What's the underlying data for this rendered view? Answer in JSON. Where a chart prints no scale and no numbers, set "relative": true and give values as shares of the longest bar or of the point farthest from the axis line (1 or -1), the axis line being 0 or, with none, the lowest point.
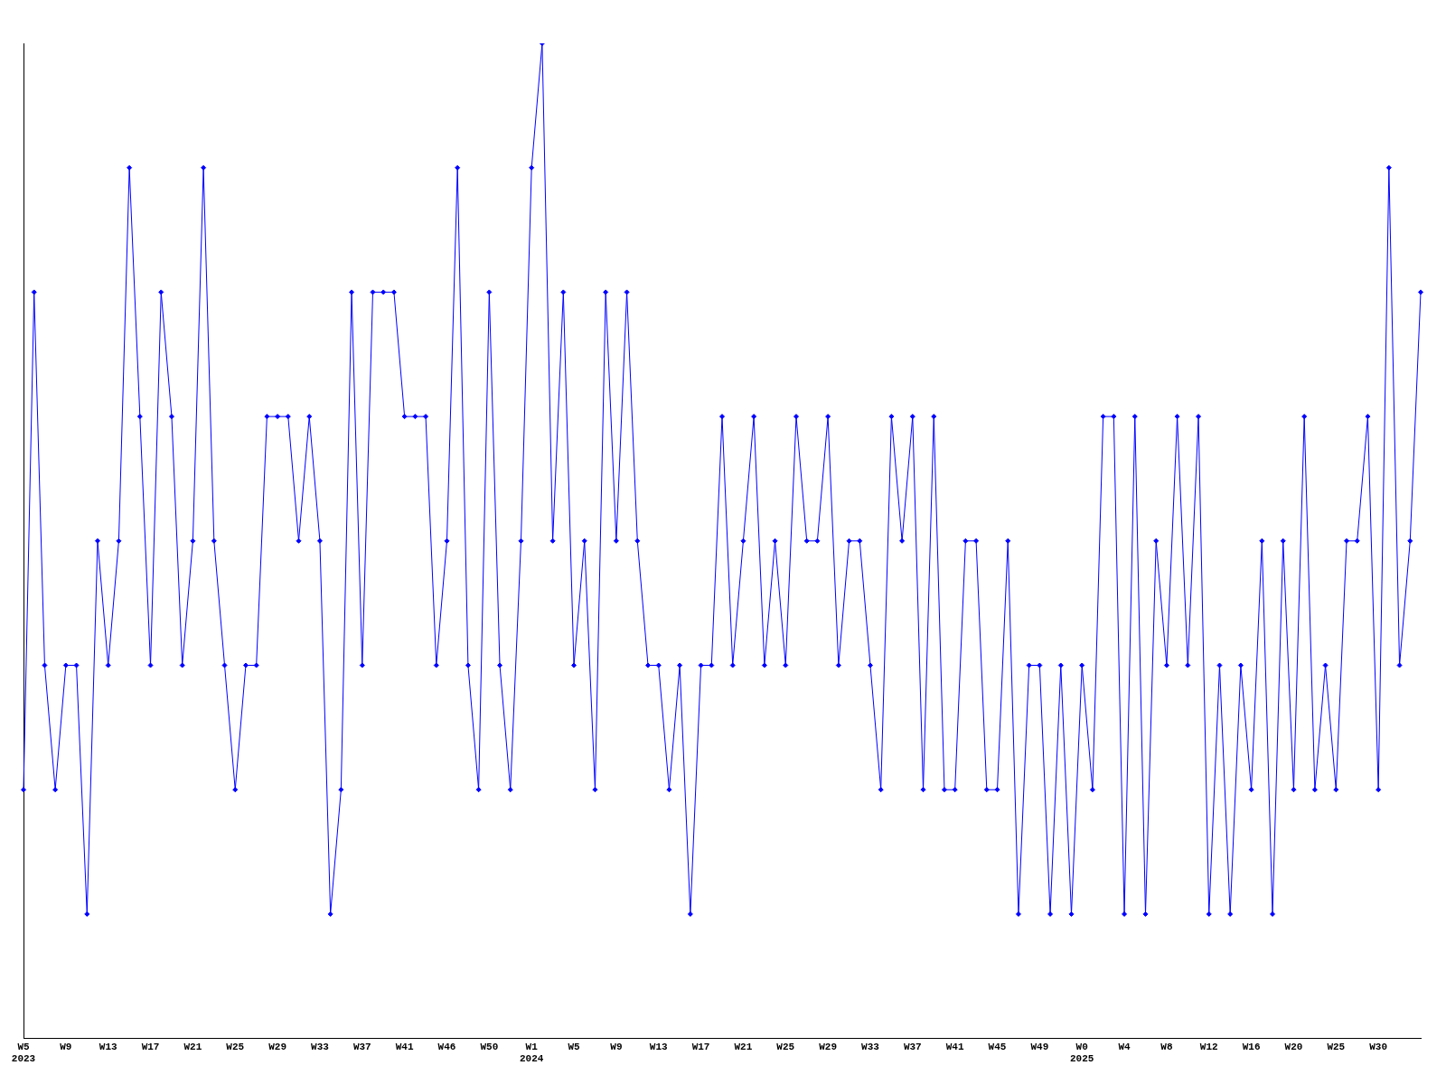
{
  "chart_data": {
    "type": "line",
    "relative": true,
    "grid": false,
    "legend": false,
    "marker": "diamond",
    "categories": [
      "W5\n2023",
      null,
      null,
      null,
      "W9",
      null,
      null,
      null,
      "W13",
      null,
      null,
      null,
      "W17",
      null,
      null,
      null,
      "W21",
      null,
      null,
      null,
      "W25",
      null,
      null,
      null,
      "W29",
      null,
      null,
      null,
      "W33",
      null,
      null,
      null,
      "W37",
      null,
      null,
      null,
      "W41",
      null,
      null,
      null,
      "W46",
      null,
      null,
      null,
      "W50",
      null,
      null,
      null,
      "W1\n2024",
      null,
      null,
      null,
      "W5",
      null,
      null,
      null,
      "W9",
      null,
      null,
      null,
      "W13",
      null,
      null,
      null,
      "W17",
      null,
      null,
      null,
      "W21",
      null,
      null,
      null,
      "W25",
      null,
      null,
      null,
      "W29",
      null,
      null,
      null,
      "W33",
      null,
      null,
      null,
      "W37",
      null,
      null,
      null,
      "W41",
      null,
      null,
      null,
      "W45",
      null,
      null,
      null,
      "W49",
      null,
      null,
      null,
      "W0\n2025",
      null,
      null,
      null,
      "W4",
      null,
      null,
      null,
      "W8",
      null,
      null,
      null,
      "W12",
      null,
      null,
      null,
      "W16",
      null,
      null,
      null,
      "W20",
      null,
      null,
      null,
      "W25",
      null,
      null,
      null,
      "W30",
      null,
      null,
      null,
      null
    ],
    "series": [
      {
        "color": "#0000ff",
        "values": [
          0.25,
          0.75,
          0.375,
          0.25,
          0.375,
          0.375,
          0.125,
          0.5,
          0.375,
          0.5,
          0.875,
          0.625,
          0.375,
          0.75,
          0.625,
          0.375,
          0.5,
          0.875,
          0.5,
          0.375,
          0.25,
          0.375,
          0.375,
          0.625,
          0.625,
          0.625,
          0.5,
          0.625,
          0.5,
          0.125,
          0.25,
          0.75,
          0.375,
          0.75,
          0.75,
          0.75,
          0.625,
          0.625,
          0.625,
          0.375,
          0.5,
          0.875,
          0.375,
          0.25,
          0.75,
          0.375,
          0.25,
          0.5,
          0.875,
          1,
          0.5,
          0.75,
          0.375,
          0.5,
          0.25,
          0.75,
          0.5,
          0.75,
          0.5,
          0.375,
          0.375,
          0.25,
          0.375,
          0.125,
          0.375,
          0.375,
          0.625,
          0.375,
          0.5,
          0.625,
          0.375,
          0.5,
          0.375,
          0.625,
          0.5,
          0.5,
          0.625,
          0.375,
          0.5,
          0.5,
          0.375,
          0.25,
          0.625,
          0.5,
          0.625,
          0.25,
          0.625,
          0.25,
          0.25,
          0.5,
          0.5,
          0.25,
          0.25,
          0.5,
          0.125,
          0.375,
          0.375,
          0.125,
          0.375,
          0.125,
          0.375,
          0.25,
          0.625,
          0.625,
          0.125,
          0.625,
          0.125,
          0.5,
          0.375,
          0.625,
          0.375,
          0.625,
          0.125,
          0.375,
          0.125,
          0.375,
          0.25,
          0.5,
          0.125,
          0.5,
          0.25,
          0.625,
          0.25,
          0.375,
          0.25,
          0.5,
          0.5,
          0.625,
          0.25,
          0.875,
          0.375,
          0.5,
          0.75
        ]
      }
    ]
  }
}
